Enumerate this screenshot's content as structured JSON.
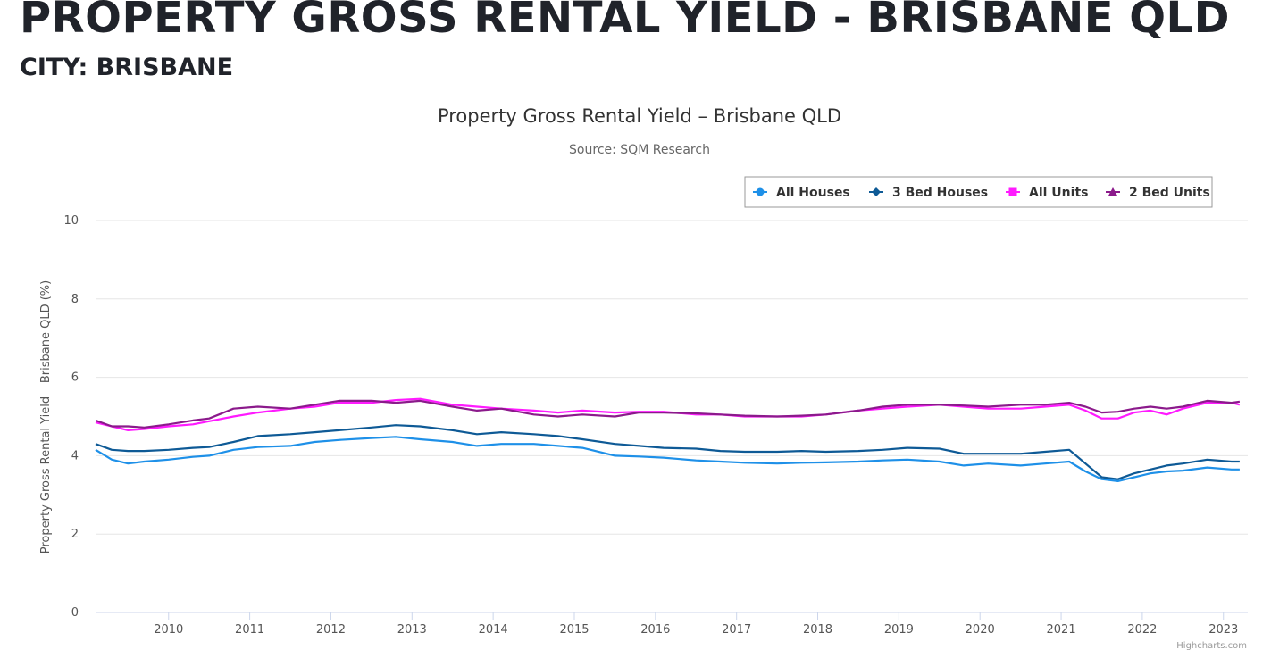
{
  "page": {
    "heading": "PROPERTY GROSS RENTAL YIELD - BRISBANE QLD",
    "city": "CITY: BRISBANE"
  },
  "credits": "Highcharts.com",
  "chart_data": {
    "type": "line",
    "title": "Property Gross Rental Yield – Brisbane QLD",
    "subtitle": "Source: SQM Research",
    "ylabel": "Property Gross Rental Yield – Brisbane QLD (%)",
    "xlabel": "",
    "ylim": [
      0,
      10
    ],
    "yticks": [
      0,
      2,
      4,
      6,
      8,
      10
    ],
    "xlim": [
      2009.6,
      2023.8
    ],
    "xticks": [
      "2010",
      "2011",
      "2012",
      "2013",
      "2014",
      "2015",
      "2016",
      "2017",
      "2018",
      "2019",
      "2020",
      "2021",
      "2022",
      "2023"
    ],
    "grid": true,
    "legend_position": "top-right",
    "series": [
      {
        "name": "All Houses",
        "color": "#1e90e8",
        "marker": "circle",
        "x": [
          2009.6,
          2009.8,
          2010.0,
          2010.2,
          2010.5,
          2010.8,
          2011.0,
          2011.3,
          2011.6,
          2012.0,
          2012.3,
          2012.6,
          2013.0,
          2013.3,
          2013.6,
          2014.0,
          2014.3,
          2014.6,
          2015.0,
          2015.3,
          2015.6,
          2016.0,
          2016.3,
          2016.6,
          2017.0,
          2017.3,
          2017.6,
          2018.0,
          2018.3,
          2018.6,
          2019.0,
          2019.3,
          2019.6,
          2020.0,
          2020.3,
          2020.6,
          2021.0,
          2021.3,
          2021.6,
          2021.8,
          2022.0,
          2022.2,
          2022.4,
          2022.6,
          2022.8,
          2023.0,
          2023.3,
          2023.6,
          2023.7
        ],
        "y": [
          4.15,
          3.9,
          3.8,
          3.85,
          3.9,
          3.97,
          4.0,
          4.15,
          4.22,
          4.25,
          4.35,
          4.4,
          4.45,
          4.48,
          4.42,
          4.35,
          4.25,
          4.3,
          4.3,
          4.25,
          4.2,
          4.0,
          3.98,
          3.95,
          3.88,
          3.85,
          3.82,
          3.8,
          3.82,
          3.83,
          3.85,
          3.88,
          3.9,
          3.85,
          3.75,
          3.8,
          3.75,
          3.8,
          3.85,
          3.6,
          3.4,
          3.35,
          3.45,
          3.55,
          3.6,
          3.62,
          3.7,
          3.65,
          3.65
        ]
      },
      {
        "name": "3 Bed Houses",
        "color": "#0e5a96",
        "marker": "diamond",
        "x": [
          2009.6,
          2009.8,
          2010.0,
          2010.2,
          2010.5,
          2010.8,
          2011.0,
          2011.3,
          2011.6,
          2012.0,
          2012.3,
          2012.6,
          2013.0,
          2013.3,
          2013.6,
          2014.0,
          2014.3,
          2014.6,
          2015.0,
          2015.3,
          2015.6,
          2016.0,
          2016.3,
          2016.6,
          2017.0,
          2017.3,
          2017.6,
          2018.0,
          2018.3,
          2018.6,
          2019.0,
          2019.3,
          2019.6,
          2020.0,
          2020.3,
          2020.6,
          2021.0,
          2021.3,
          2021.6,
          2021.8,
          2022.0,
          2022.2,
          2022.4,
          2022.6,
          2022.8,
          2023.0,
          2023.3,
          2023.6,
          2023.7
        ],
        "y": [
          4.3,
          4.15,
          4.12,
          4.12,
          4.15,
          4.2,
          4.22,
          4.35,
          4.5,
          4.55,
          4.6,
          4.65,
          4.72,
          4.78,
          4.75,
          4.65,
          4.55,
          4.6,
          4.55,
          4.5,
          4.42,
          4.3,
          4.25,
          4.2,
          4.18,
          4.12,
          4.1,
          4.1,
          4.12,
          4.1,
          4.12,
          4.15,
          4.2,
          4.18,
          4.05,
          4.05,
          4.05,
          4.1,
          4.15,
          3.8,
          3.45,
          3.4,
          3.55,
          3.65,
          3.75,
          3.8,
          3.9,
          3.85,
          3.85
        ]
      },
      {
        "name": "All Units",
        "color": "#ff1aff",
        "marker": "square",
        "x": [
          2009.6,
          2009.8,
          2010.0,
          2010.2,
          2010.5,
          2010.8,
          2011.0,
          2011.3,
          2011.6,
          2012.0,
          2012.3,
          2012.6,
          2013.0,
          2013.3,
          2013.6,
          2014.0,
          2014.3,
          2014.6,
          2015.0,
          2015.3,
          2015.6,
          2016.0,
          2016.3,
          2016.6,
          2017.0,
          2017.3,
          2017.6,
          2018.0,
          2018.3,
          2018.6,
          2019.0,
          2019.3,
          2019.6,
          2020.0,
          2020.3,
          2020.6,
          2021.0,
          2021.3,
          2021.6,
          2021.8,
          2022.0,
          2022.2,
          2022.4,
          2022.6,
          2022.8,
          2023.0,
          2023.3,
          2023.6,
          2023.7
        ],
        "y": [
          4.85,
          4.75,
          4.65,
          4.68,
          4.75,
          4.8,
          4.88,
          5.0,
          5.1,
          5.2,
          5.25,
          5.35,
          5.35,
          5.42,
          5.45,
          5.3,
          5.25,
          5.2,
          5.15,
          5.1,
          5.15,
          5.1,
          5.12,
          5.12,
          5.05,
          5.05,
          5.0,
          5.0,
          5.0,
          5.05,
          5.15,
          5.2,
          5.25,
          5.3,
          5.25,
          5.2,
          5.2,
          5.25,
          5.3,
          5.15,
          4.95,
          4.95,
          5.1,
          5.15,
          5.05,
          5.2,
          5.35,
          5.35,
          5.3
        ]
      },
      {
        "name": "2 Bed Units",
        "color": "#8b1a8b",
        "marker": "triangle",
        "x": [
          2009.6,
          2009.8,
          2010.0,
          2010.2,
          2010.5,
          2010.8,
          2011.0,
          2011.3,
          2011.6,
          2012.0,
          2012.3,
          2012.6,
          2013.0,
          2013.3,
          2013.6,
          2014.0,
          2014.3,
          2014.6,
          2015.0,
          2015.3,
          2015.6,
          2016.0,
          2016.3,
          2016.6,
          2017.0,
          2017.3,
          2017.6,
          2018.0,
          2018.3,
          2018.6,
          2019.0,
          2019.3,
          2019.6,
          2020.0,
          2020.3,
          2020.6,
          2021.0,
          2021.3,
          2021.6,
          2021.8,
          2022.0,
          2022.2,
          2022.4,
          2022.6,
          2022.8,
          2023.0,
          2023.3,
          2023.6,
          2023.7
        ],
        "y": [
          4.9,
          4.75,
          4.75,
          4.72,
          4.8,
          4.9,
          4.95,
          5.2,
          5.25,
          5.2,
          5.3,
          5.4,
          5.4,
          5.35,
          5.4,
          5.25,
          5.15,
          5.2,
          5.05,
          5.0,
          5.05,
          5.0,
          5.1,
          5.1,
          5.08,
          5.05,
          5.02,
          5.0,
          5.02,
          5.05,
          5.15,
          5.25,
          5.3,
          5.3,
          5.28,
          5.25,
          5.3,
          5.3,
          5.35,
          5.25,
          5.1,
          5.12,
          5.2,
          5.25,
          5.2,
          5.25,
          5.4,
          5.35,
          5.38
        ]
      }
    ]
  }
}
